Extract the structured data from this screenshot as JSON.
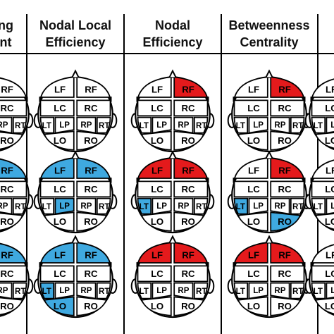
{
  "columns": [
    {
      "line1": "ng",
      "line2": "nt"
    },
    {
      "line1": "Nodal Local",
      "line2": "Efficiency"
    },
    {
      "line1": "Nodal",
      "line2": "Efficiency"
    },
    {
      "line1": "Betweenness",
      "line2": "Centrality"
    },
    {
      "line1": "",
      "line2": ""
    }
  ],
  "region_labels": {
    "LF": "LF",
    "RF": "RF",
    "LC": "LC",
    "RC": "RC",
    "LT": "LT",
    "LP": "LP",
    "RP": "RP",
    "RT": "RT",
    "LO": "LO",
    "RO": "RO"
  },
  "colors": {
    "red": "#e41a1c",
    "blue": "#3fa9e0",
    "white": "#ffffff",
    "stroke": "#000000"
  },
  "heads": [
    {
      "column": 1,
      "row": 0,
      "regions": {}
    },
    {
      "column": 1,
      "row": 1,
      "regions": {
        "LF": "blue",
        "RF": "blue",
        "LP": "blue"
      }
    },
    {
      "column": 1,
      "row": 2,
      "regions": {
        "LF": "blue",
        "RF": "blue",
        "LT": "blue",
        "LO": "blue"
      }
    },
    {
      "column": 2,
      "row": 0,
      "regions": {
        "RF": "red"
      }
    },
    {
      "column": 2,
      "row": 1,
      "regions": {
        "LF": "red",
        "RF": "red",
        "LT": "blue"
      }
    },
    {
      "column": 2,
      "row": 2,
      "regions": {
        "LF": "red",
        "RF": "red"
      }
    },
    {
      "column": 3,
      "row": 0,
      "regions": {
        "RF": "red"
      }
    },
    {
      "column": 3,
      "row": 1,
      "regions": {
        "RF": "red",
        "LT": "blue",
        "RO": "blue"
      }
    },
    {
      "column": 3,
      "row": 2,
      "regions": {
        "LF": "red",
        "RF": "red"
      }
    }
  ],
  "partial_heads": [
    {
      "side": "left",
      "row": 0,
      "regions": {}
    },
    {
      "side": "left",
      "row": 1,
      "regions": {
        "RF": "blue"
      }
    },
    {
      "side": "left",
      "row": 2,
      "regions": {
        "RF": "blue"
      }
    },
    {
      "side": "right",
      "row": 0,
      "regions": {}
    },
    {
      "side": "right",
      "row": 1,
      "regions": {}
    },
    {
      "side": "right",
      "row": 2,
      "regions": {}
    }
  ]
}
